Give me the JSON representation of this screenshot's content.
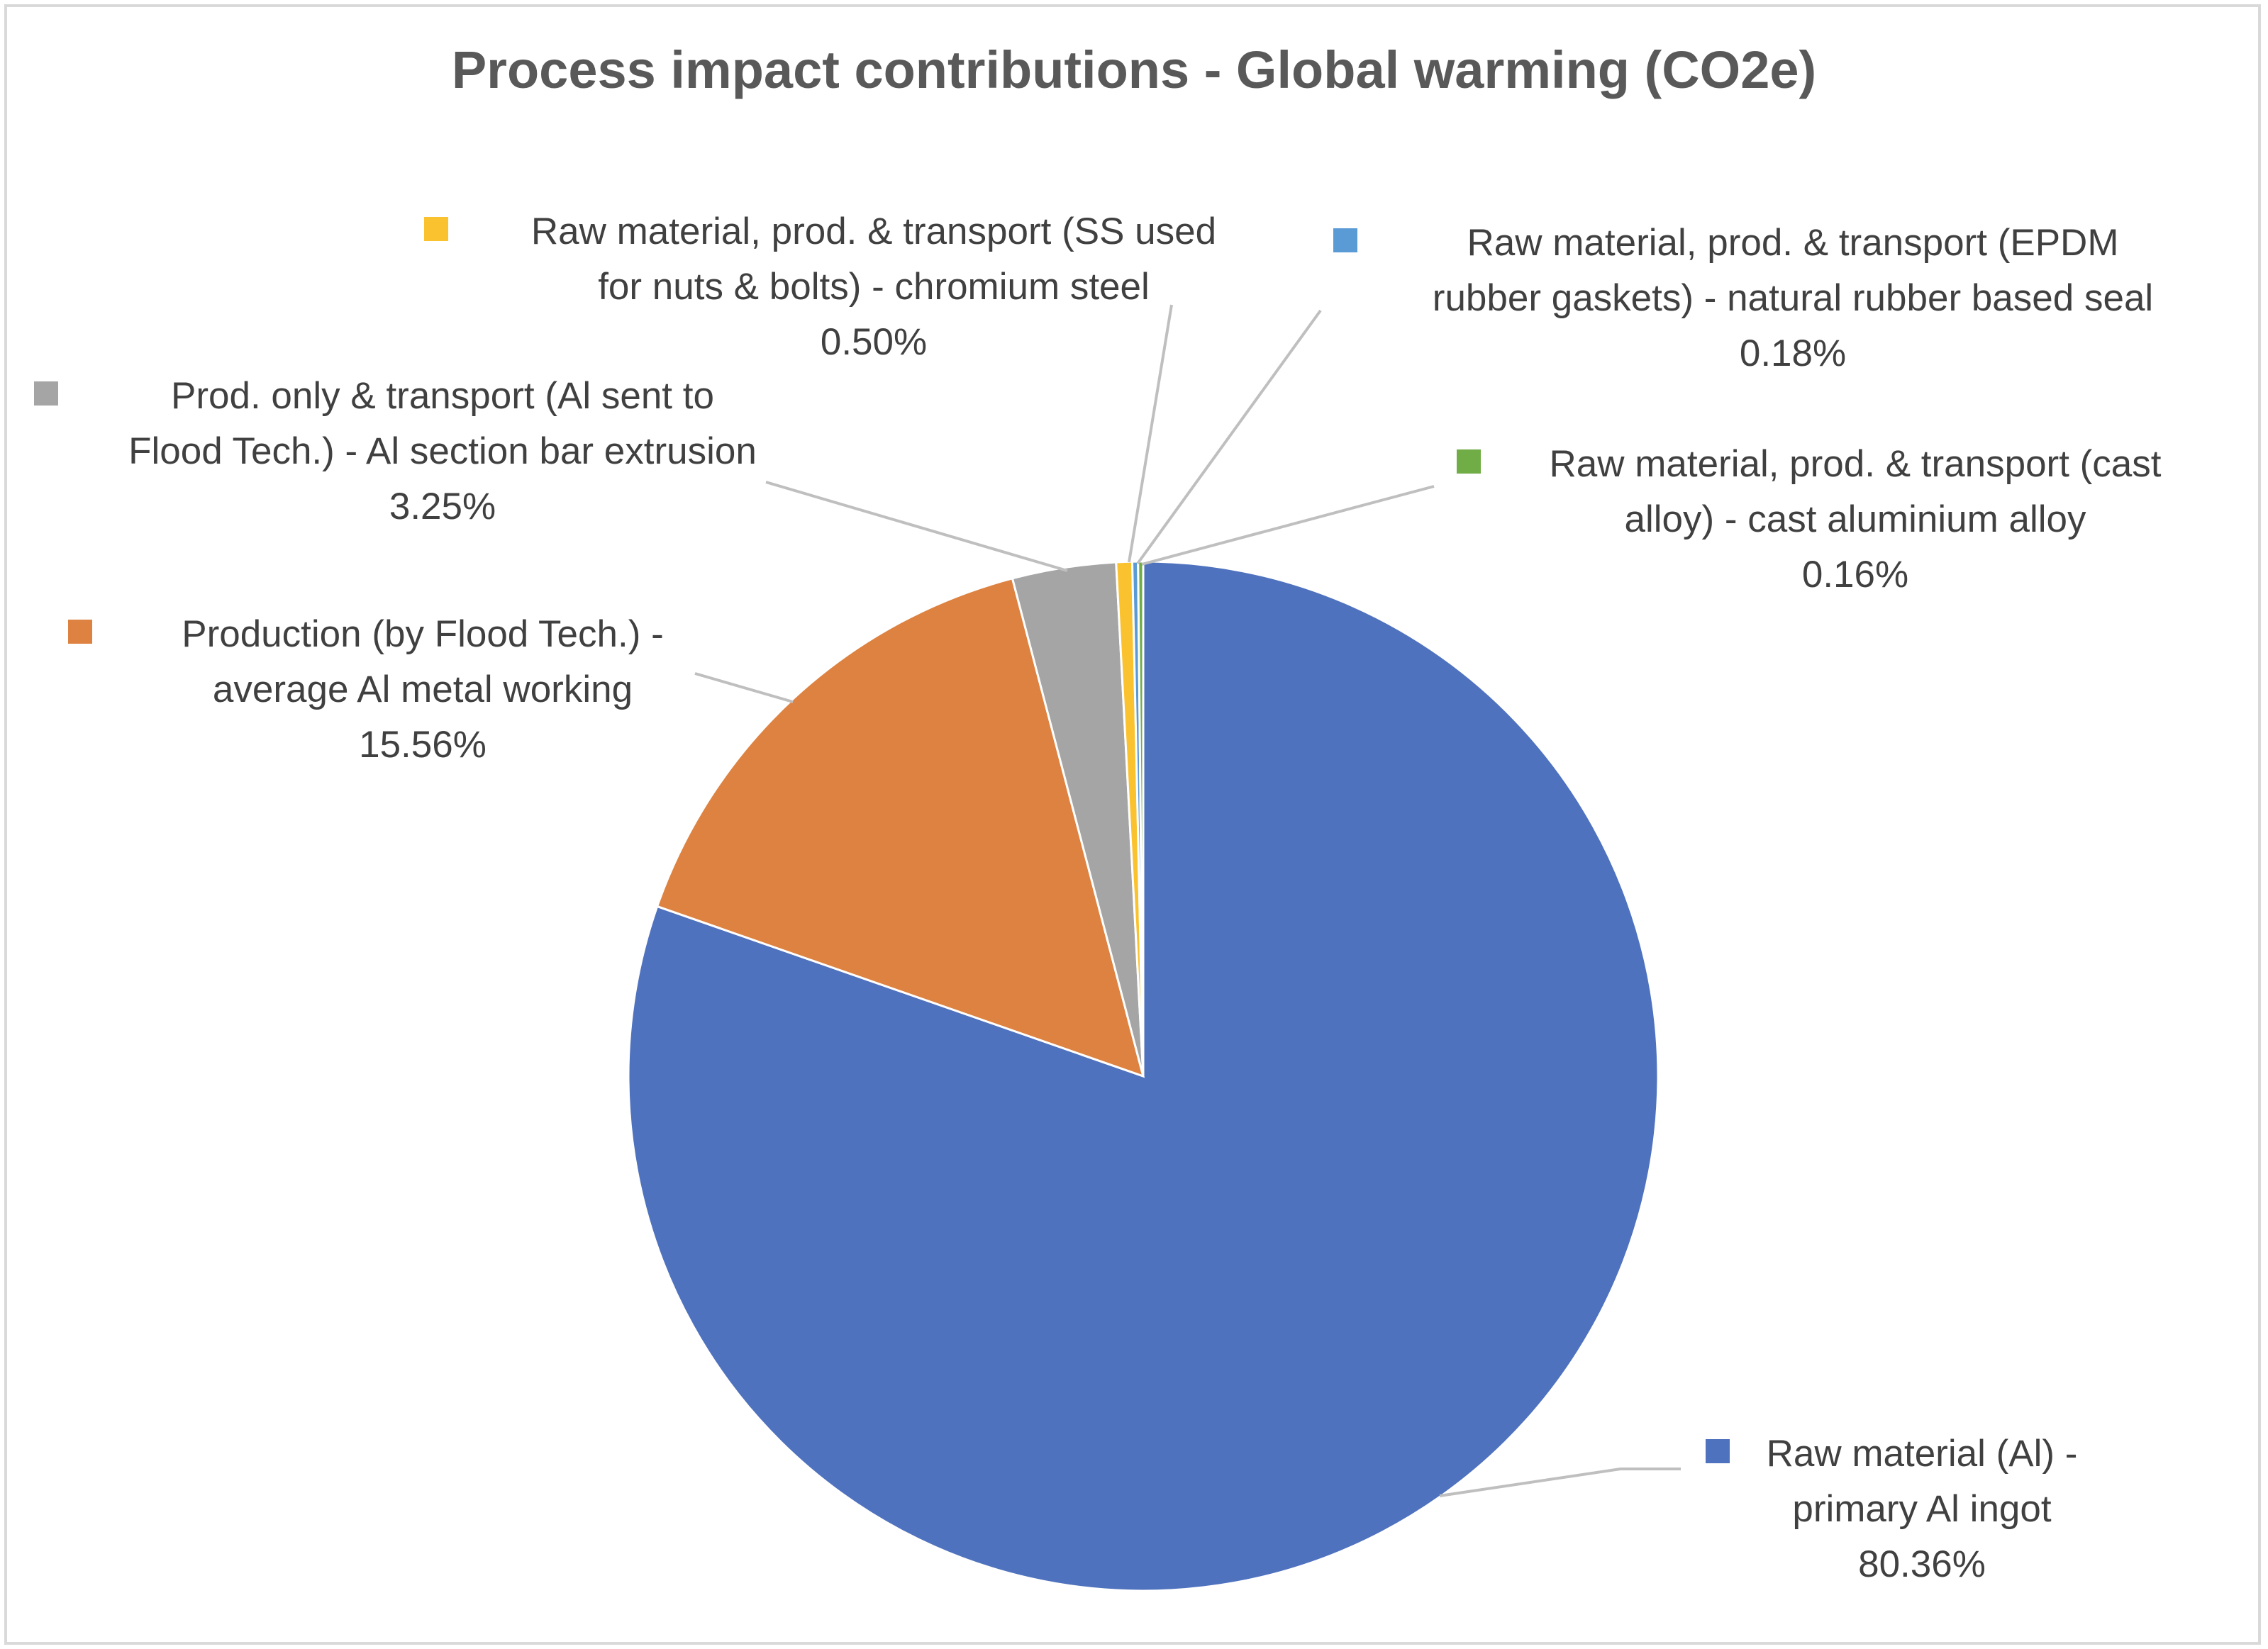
{
  "chart_data": {
    "type": "pie",
    "title": "Process impact contributions - Global warming (CO2e)",
    "slices": [
      {
        "key": "primary-al-ingot",
        "label_lines": [
          "Raw material (Al) -",
          "primary Al ingot"
        ],
        "value_label": "80.36%",
        "value": 80.36,
        "color": "#4f72be"
      },
      {
        "key": "al-metal-working",
        "label_lines": [
          "Production (by Flood Tech.) -",
          "average Al metal working"
        ],
        "value_label": "15.56%",
        "value": 15.56,
        "color": "#dd8241"
      },
      {
        "key": "al-section-bar-extrusion",
        "label_lines": [
          "Prod. only & transport  (Al sent to",
          "Flood Tech.) - Al section bar extrusion"
        ],
        "value_label": "3.25%",
        "value": 3.25,
        "color": "#a5a5a5"
      },
      {
        "key": "chromium-steel",
        "label_lines": [
          "Raw material, prod. & transport (SS used",
          "for nuts & bolts) - chromium steel"
        ],
        "value_label": "0.50%",
        "value": 0.5,
        "color": "#fbc22f"
      },
      {
        "key": "natural-rubber-seal",
        "label_lines": [
          "Raw material, prod. & transport (EPDM",
          "rubber gaskets) - natural rubber based seal"
        ],
        "value_label": "0.18%",
        "value": 0.18,
        "color": "#5b9bd5"
      },
      {
        "key": "cast-aluminium-alloy",
        "label_lines": [
          "Raw material, prod. & transport (cast",
          "alloy) - cast aluminium alloy"
        ],
        "value_label": "0.16%",
        "value": 0.16,
        "color": "#70ad47"
      }
    ]
  }
}
